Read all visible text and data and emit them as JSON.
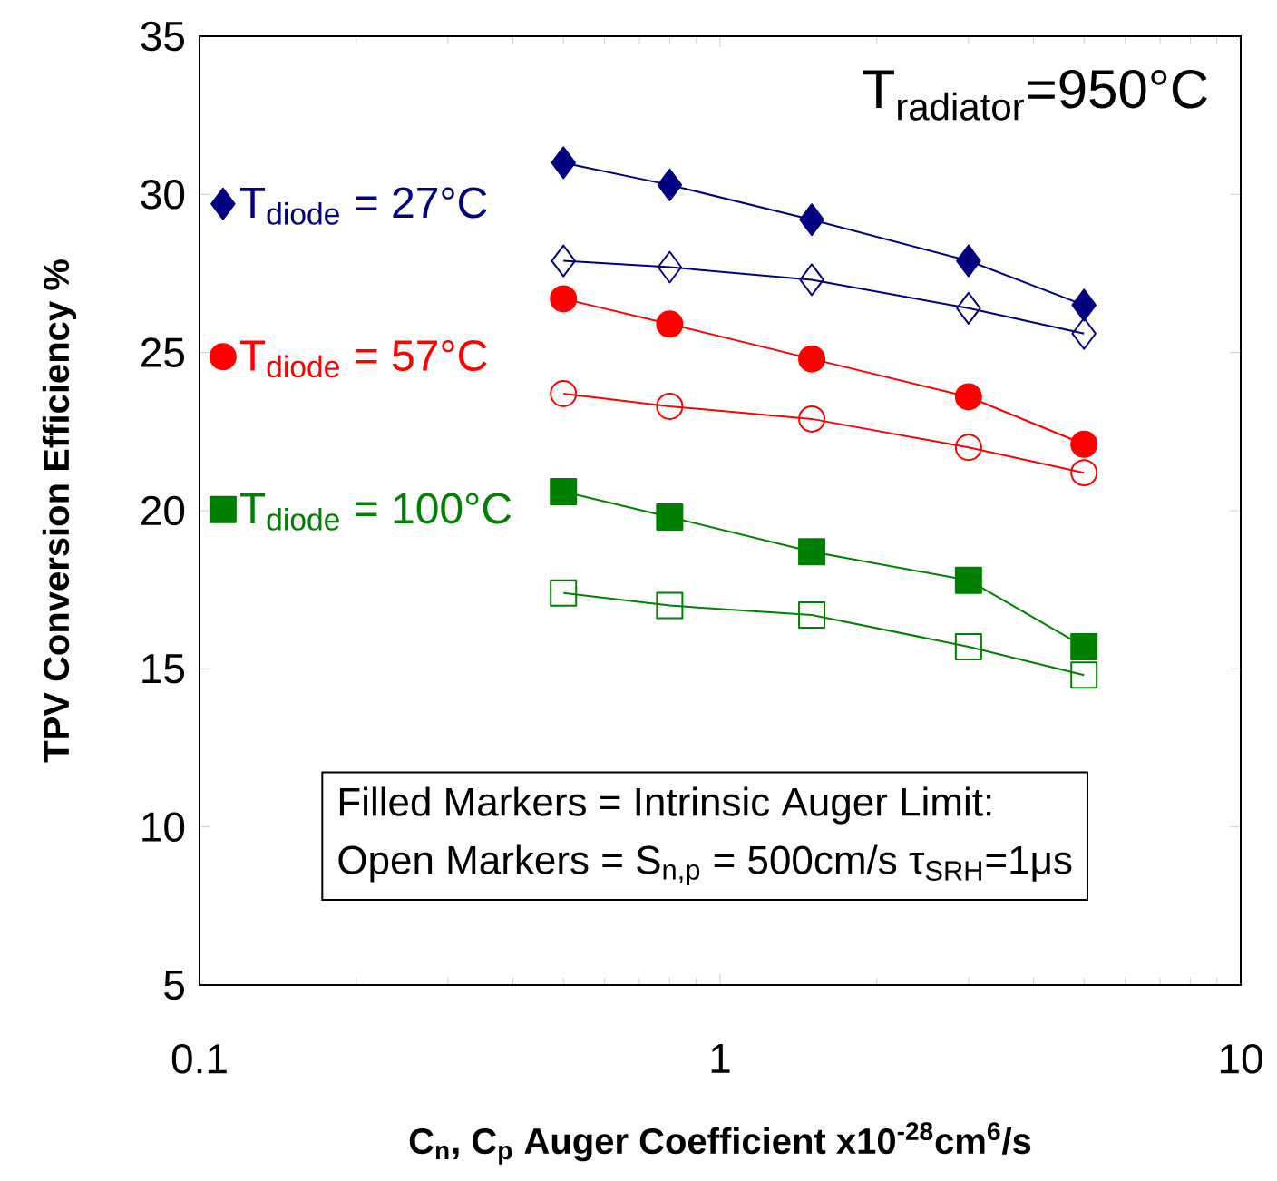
{
  "chart_data": {
    "type": "line",
    "xlabel": "C$_{n}$, C$_{p}$ Auger  Coefficient x10$^{-28}$cm$^{6}$/s",
    "ylabel": "TPV Conversion Efficiency %",
    "x": [
      0.5,
      0.8,
      1.5,
      3,
      5
    ],
    "log": "x",
    "xlim": [
      0.1,
      10
    ],
    "xticks": [
      0.1,
      1,
      10
    ],
    "ylim": [
      5,
      35
    ],
    "yticks": [
      5,
      10,
      15,
      20,
      25,
      30,
      35
    ],
    "grid": false,
    "legend": "left",
    "line_style": "solid",
    "series": [
      {
        "name": "T$_{diode}$ = 27°C",
        "color": "#000080",
        "marker": "diamond",
        "values": [
          31.0,
          30.3,
          29.2,
          27.9,
          26.5
        ]
      },
      {
        "color": "#000080",
        "marker": "diamond",
        "values": [
          27.9,
          27.7,
          27.3,
          26.4,
          25.6
        ]
      },
      {
        "name": "T$_{diode}$ = 57°C",
        "color": "#ff0000",
        "marker": "circle",
        "values": [
          26.7,
          25.9,
          24.8,
          23.6,
          22.1
        ]
      },
      {
        "color": "#ff0000",
        "marker": "circle",
        "values": [
          23.7,
          23.3,
          22.9,
          22.0,
          21.2
        ]
      },
      {
        "name": "T$_{diode}$ = 100°C",
        "color": "#008000",
        "marker": "square",
        "values": [
          20.6,
          19.8,
          18.7,
          17.8,
          15.7
        ]
      },
      {
        "color": "#008000",
        "marker": "square",
        "values": [
          17.4,
          17.0,
          16.7,
          15.7,
          14.8
        ]
      }
    ],
    "annotations": [
      "T$_{radiator}$=950°C",
      "Filled Markers = Intrinsic Auger Limit:",
      "Open Markers = S$_{n,p}$ = 500cm/s  τ$_{SRH}$=1μs"
    ]
  }
}
